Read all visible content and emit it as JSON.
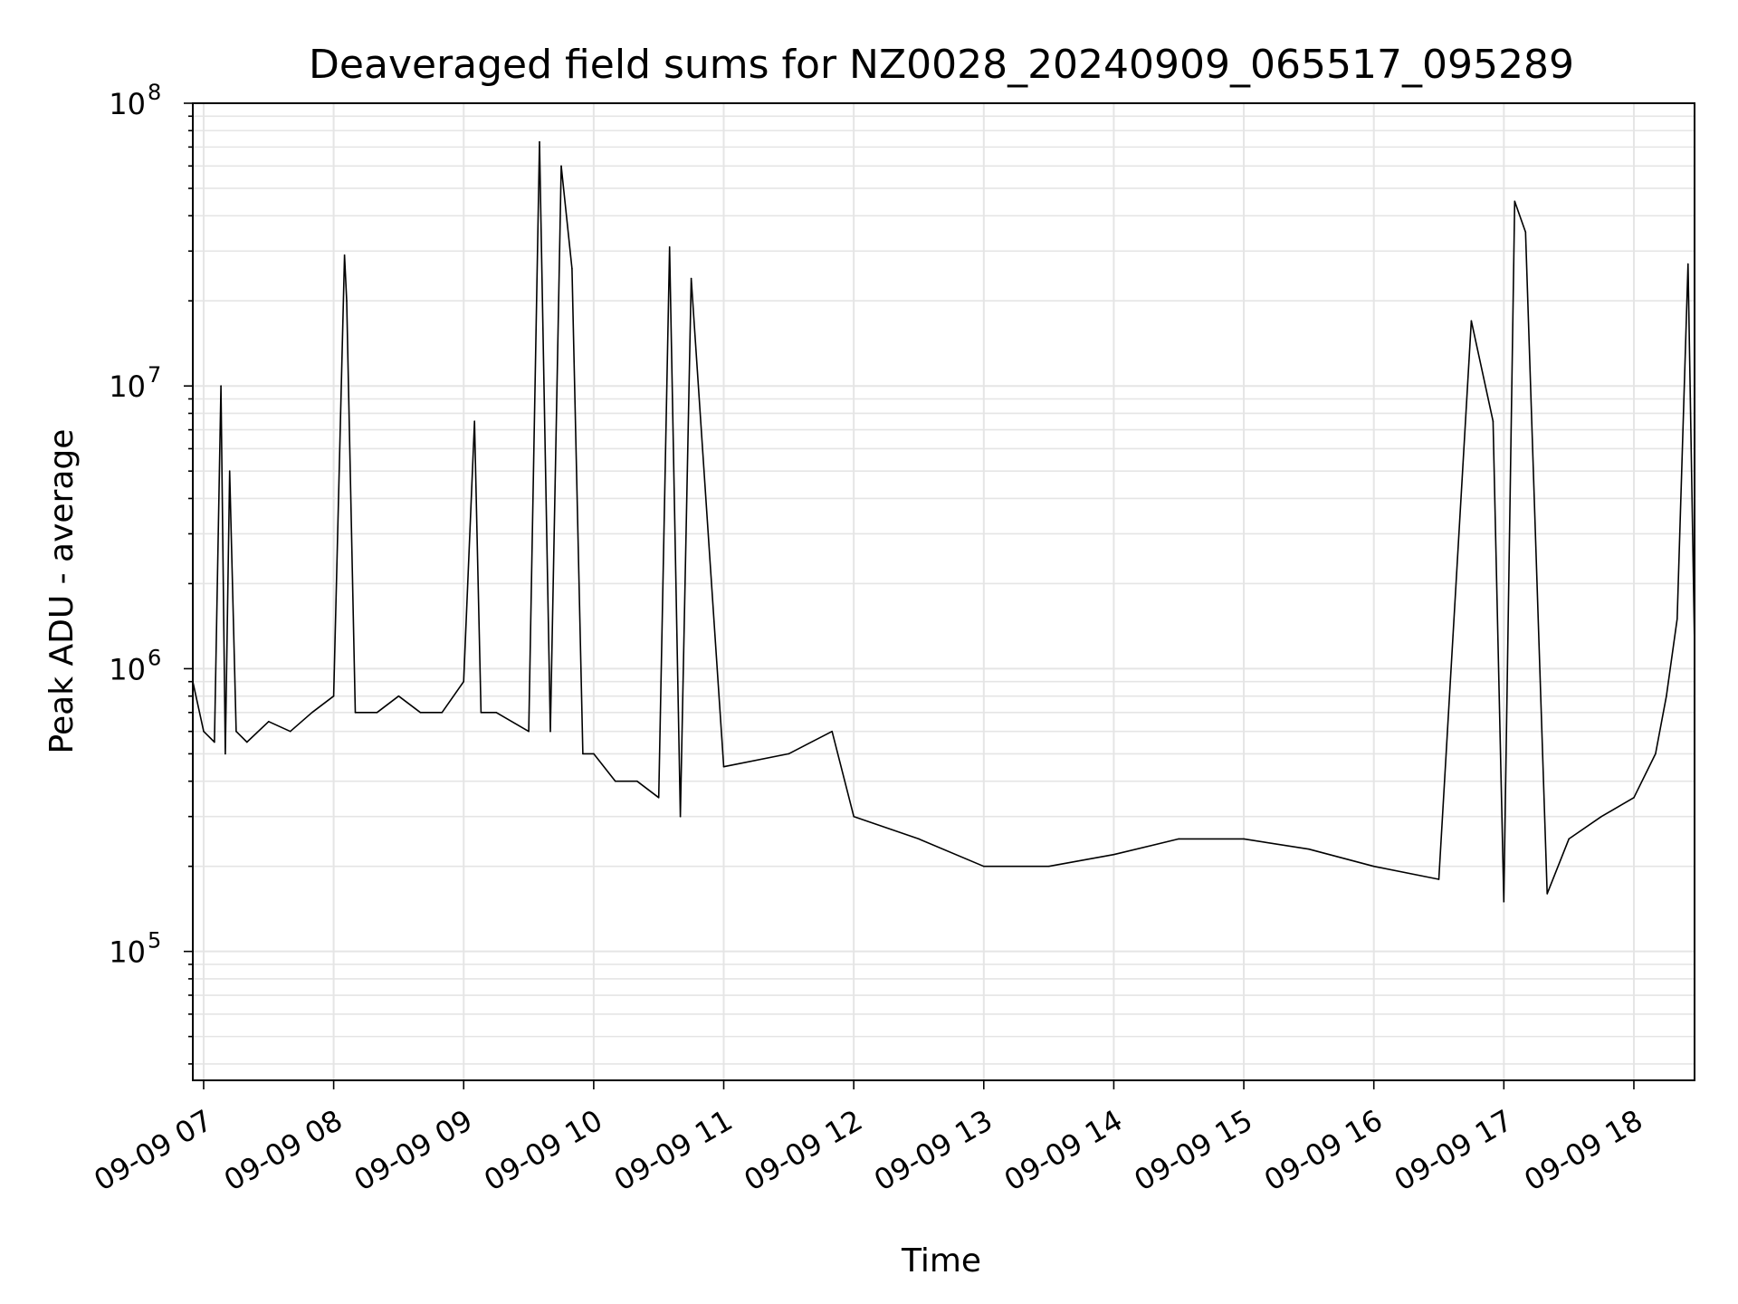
{
  "chart_data": {
    "type": "line",
    "title": "Deaveraged field sums for NZ0028_20240909_065517_095289",
    "xlabel": "Time",
    "ylabel": "Peak ADU - average",
    "y_scale": "log",
    "ylim": [
      35000,
      100000000
    ],
    "xlim": [
      "2024-09-09 06:55",
      "2024-09-09 18:28"
    ],
    "grid": true,
    "grid_minor": true,
    "line_color": "#000000",
    "grid_color": "#e5e5e5",
    "x_ticks": [
      "09-09 07",
      "09-09 08",
      "09-09 09",
      "09-09 10",
      "09-09 11",
      "09-09 12",
      "09-09 13",
      "09-09 14",
      "09-09 15",
      "09-09 16",
      "09-09 17",
      "09-09 18"
    ],
    "y_ticks": [
      {
        "base": "10",
        "exp": "5"
      },
      {
        "base": "10",
        "exp": "6"
      },
      {
        "base": "10",
        "exp": "7"
      },
      {
        "base": "10",
        "exp": "8"
      }
    ],
    "series": [
      {
        "x": [
          "2024-09-09 06:55",
          "2024-09-09 07:00",
          "2024-09-09 07:05",
          "2024-09-09 07:08",
          "2024-09-09 07:10",
          "2024-09-09 07:12",
          "2024-09-09 07:15",
          "2024-09-09 07:20",
          "2024-09-09 07:30",
          "2024-09-09 07:40",
          "2024-09-09 07:50",
          "2024-09-09 08:00",
          "2024-09-09 08:05",
          "2024-09-09 08:06",
          "2024-09-09 08:10",
          "2024-09-09 08:20",
          "2024-09-09 08:30",
          "2024-09-09 08:40",
          "2024-09-09 08:50",
          "2024-09-09 09:00",
          "2024-09-09 09:05",
          "2024-09-09 09:08",
          "2024-09-09 09:15",
          "2024-09-09 09:30",
          "2024-09-09 09:35",
          "2024-09-09 09:40",
          "2024-09-09 09:45",
          "2024-09-09 09:50",
          "2024-09-09 09:55",
          "2024-09-09 10:00",
          "2024-09-09 10:10",
          "2024-09-09 10:20",
          "2024-09-09 10:30",
          "2024-09-09 10:35",
          "2024-09-09 10:40",
          "2024-09-09 10:45",
          "2024-09-09 11:00",
          "2024-09-09 11:30",
          "2024-09-09 11:50",
          "2024-09-09 12:00",
          "2024-09-09 12:30",
          "2024-09-09 13:00",
          "2024-09-09 13:30",
          "2024-09-09 14:00",
          "2024-09-09 14:30",
          "2024-09-09 15:00",
          "2024-09-09 15:30",
          "2024-09-09 16:00",
          "2024-09-09 16:30",
          "2024-09-09 16:45",
          "2024-09-09 16:55",
          "2024-09-09 17:00",
          "2024-09-09 17:05",
          "2024-09-09 17:10",
          "2024-09-09 17:20",
          "2024-09-09 17:30",
          "2024-09-09 17:45",
          "2024-09-09 18:00",
          "2024-09-09 18:10",
          "2024-09-09 18:15",
          "2024-09-09 18:20",
          "2024-09-09 18:25",
          "2024-09-09 18:28"
        ],
        "y": [
          900000,
          600000,
          550000,
          10000000,
          500000,
          5000000,
          600000,
          550000,
          650000,
          600000,
          700000,
          800000,
          29000000,
          20000000,
          700000,
          700000,
          800000,
          700000,
          700000,
          900000,
          7500000,
          700000,
          700000,
          600000,
          73000000,
          600000,
          60000000,
          26000000,
          500000,
          500000,
          400000,
          400000,
          350000,
          31000000,
          300000,
          24000000,
          450000,
          500000,
          600000,
          300000,
          250000,
          200000,
          200000,
          220000,
          250000,
          250000,
          230000,
          200000,
          180000,
          17000000,
          7500000,
          150000,
          45000000,
          35000000,
          160000,
          250000,
          300000,
          350000,
          500000,
          800000,
          1500000,
          27000000,
          1200000
        ]
      }
    ]
  }
}
